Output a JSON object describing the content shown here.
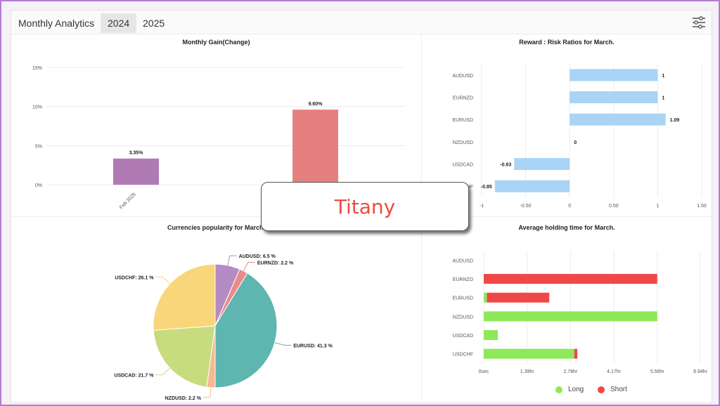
{
  "header": {
    "title": "Monthly Analytics",
    "tabs": [
      {
        "label": "2024",
        "active": true
      },
      {
        "label": "2025",
        "active": false
      }
    ],
    "settings_icon": "sliders-icon"
  },
  "watermark": {
    "text": "Titany",
    "color": "#ee4b3e"
  },
  "chart_data": [
    {
      "type": "bar",
      "title": "Monthly Gain(Change)",
      "categories": [
        "Feb 2025",
        ""
      ],
      "values": [
        3.35,
        9.6
      ],
      "data_labels": [
        "3.35%",
        "9.60%"
      ],
      "colors": [
        "#b07ab5",
        "#e58080"
      ],
      "ylim": [
        0,
        15
      ],
      "yticks": [
        0,
        5,
        10,
        15
      ],
      "ytick_labels": [
        "0%",
        "5%",
        "10%",
        "15%"
      ],
      "grid": true
    },
    {
      "type": "bar",
      "orientation": "horizontal",
      "title": "Reward : Risk Ratios for March.",
      "categories": [
        "AUDUSD",
        "EURNZD",
        "EURUSD",
        "NZDUSD",
        "USDCAD",
        "USDCHF"
      ],
      "values": [
        1,
        1,
        1.09,
        0,
        -0.63,
        -0.85
      ],
      "data_labels": [
        "1",
        "1",
        "1.09",
        "0",
        "-0.63",
        "-0.85"
      ],
      "color": "#a9d4f5",
      "xlim": [
        -1,
        1.5
      ],
      "xticks": [
        -1,
        -0.5,
        0,
        0.5,
        1,
        1.5
      ],
      "xtick_labels": [
        "-1",
        "-0.50",
        "0",
        "0.50",
        "1",
        "1.50"
      ],
      "grid": true
    },
    {
      "type": "pie",
      "title": "Currencies popularity for March.",
      "labels": [
        "AUDUSD",
        "EURNZD",
        "EURUSD",
        "NZDUSD",
        "USDCAD",
        "USDCHF"
      ],
      "values": [
        6.5,
        2.2,
        41.3,
        2.2,
        21.7,
        26.1
      ],
      "data_labels": [
        "AUDUSD: 6.5 %",
        "EURNZD: 2.2 %",
        "EURUSD: 41.3 %",
        "NZDUSD: 2.2 %",
        "USDCAD: 21.7 %",
        "USDCHF: 26.1 %"
      ],
      "colors": [
        "#b58bc4",
        "#ea8a8a",
        "#5fb5b0",
        "#f7b98f",
        "#c7dc7e",
        "#f8d679"
      ]
    },
    {
      "type": "bar",
      "orientation": "horizontal",
      "stacked": true,
      "title": "Average holding time for March.",
      "categories": [
        "AUDUSD",
        "EURNZD",
        "EURUSD",
        "NZDUSD",
        "USDCAD",
        "USDCHF"
      ],
      "series": [
        {
          "name": "Long",
          "color": "#8de85a",
          "values": [
            0,
            0,
            0.1,
            5.56,
            0.45,
            2.9
          ]
        },
        {
          "name": "Short",
          "color": "#f04848",
          "values": [
            0,
            5.56,
            2.0,
            0,
            0,
            0.1
          ]
        }
      ],
      "xlim": [
        0,
        6.94
      ],
      "xticks": [
        0,
        1.39,
        2.78,
        4.17,
        5.56,
        6.94
      ],
      "xtick_labels": [
        "0sec",
        "1.39hr",
        "2.78hr",
        "4.17hr",
        "5.56hr",
        "6.94hr"
      ],
      "grid": true,
      "legend": "bottom"
    }
  ]
}
